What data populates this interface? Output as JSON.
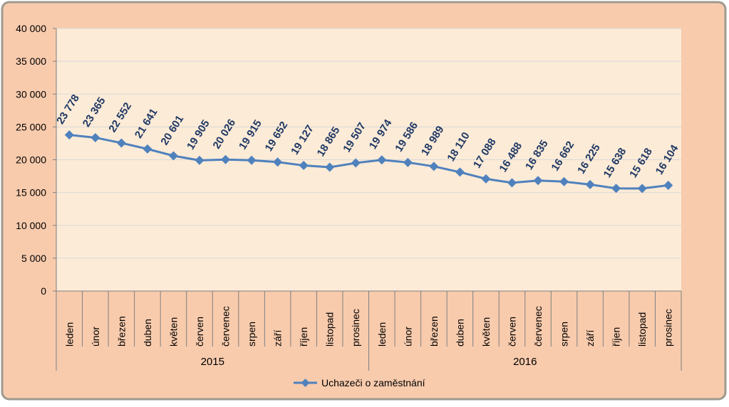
{
  "colors": {
    "frame_bg": "#f8cbad",
    "plot_bg": "#fcebd7",
    "frame_border": "#9e9a8f",
    "series": "#4f81bd",
    "data_label": "#1f3864",
    "grid": "#d9d9d9",
    "axis": "#808080",
    "text": "#000000"
  },
  "chart_data": {
    "type": "line",
    "title": "",
    "xlabel": "",
    "ylabel": "",
    "ylim": [
      0,
      40000
    ],
    "y_ticks": [
      "0",
      "5 000",
      "10 000",
      "15 000",
      "20 000",
      "25 000",
      "30 000",
      "35 000",
      "40 000"
    ],
    "grid": "horizontal",
    "legend_position": "bottom",
    "groups": [
      {
        "label": "2015",
        "categories": [
          "leden",
          "únor",
          "březen",
          "duben",
          "květen",
          "červen",
          "červenec",
          "srpen",
          "září",
          "říjen",
          "listopad",
          "prosinec"
        ]
      },
      {
        "label": "2016",
        "categories": [
          "leden",
          "únor",
          "březen",
          "duben",
          "květen",
          "červen",
          "červenec",
          "srpen",
          "září",
          "říjen",
          "listopad",
          "prosinec"
        ]
      }
    ],
    "series": [
      {
        "name": "Uchazeči o zaměstnání",
        "marker": "diamond",
        "values": [
          23778,
          23365,
          22552,
          21641,
          20601,
          19905,
          20026,
          19915,
          19652,
          19127,
          18865,
          19507,
          19974,
          19586,
          18989,
          18110,
          17088,
          16488,
          16835,
          16662,
          16225,
          15638,
          15618,
          16104
        ],
        "labels": [
          "23 778",
          "23 365",
          "22 552",
          "21 641",
          "20 601",
          "19 905",
          "20 026",
          "19 915",
          "19 652",
          "19 127",
          "18 865",
          "19 507",
          "19 974",
          "19 586",
          "18 989",
          "18 110",
          "17 088",
          "16 488",
          "16 835",
          "16 662",
          "16 225",
          "15 638",
          "15 618",
          "16 104"
        ]
      }
    ]
  }
}
